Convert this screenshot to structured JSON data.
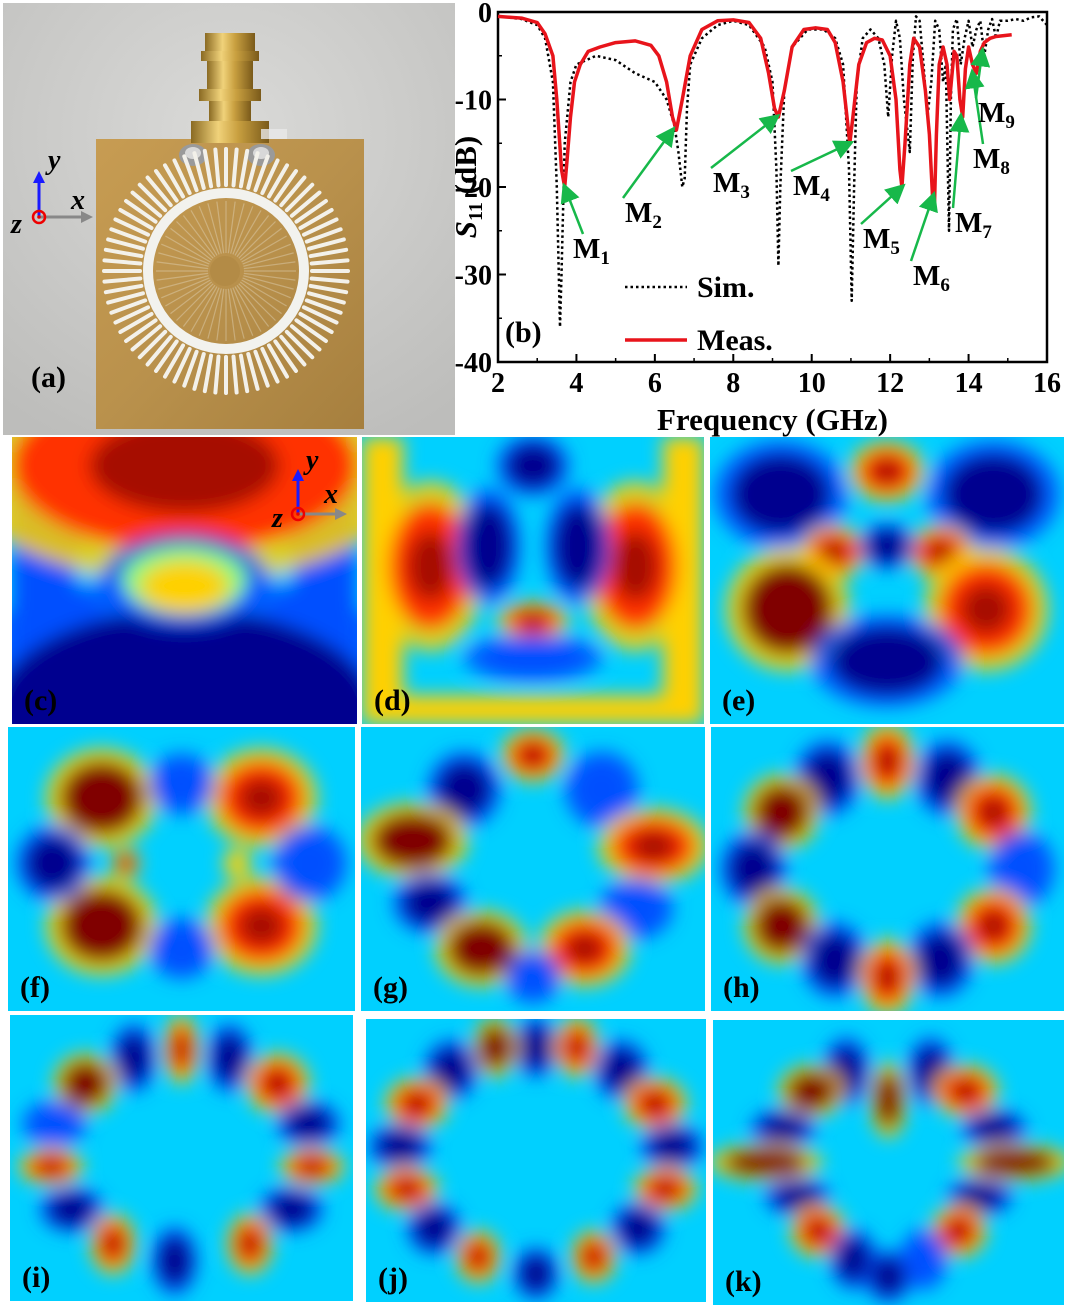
{
  "figure": {
    "panels": [
      {
        "id": "a",
        "label": "(a)",
        "content": "photo"
      },
      {
        "id": "b",
        "label": "(b)",
        "content": "plot"
      },
      {
        "id": "c",
        "label": "(c)",
        "content": "field-map"
      },
      {
        "id": "d",
        "label": "(d)",
        "content": "field-map"
      },
      {
        "id": "e",
        "label": "(e)",
        "content": "field-map"
      },
      {
        "id": "f",
        "label": "(f)",
        "content": "field-map"
      },
      {
        "id": "g",
        "label": "(g)",
        "content": "field-map"
      },
      {
        "id": "h",
        "label": "(h)",
        "content": "field-map"
      },
      {
        "id": "i",
        "label": "(i)",
        "content": "field-map"
      },
      {
        "id": "j",
        "label": "(j)",
        "content": "field-map"
      },
      {
        "id": "k",
        "label": "(k)",
        "content": "field-map"
      }
    ],
    "axes_glyph": {
      "y": "y",
      "x": "x",
      "z": "z"
    },
    "colormap": [
      "#00008f",
      "#0050ff",
      "#00d0ff",
      "#80ff80",
      "#ffd000",
      "#ff3000",
      "#800000"
    ]
  },
  "chart_data": {
    "type": "line",
    "xlabel": "Frequency (GHz)",
    "ylabel_main": "S",
    "ylabel_sub": "11",
    "ylabel_unit": " (dB)",
    "xlim": [
      2,
      16
    ],
    "ylim": [
      -40,
      0
    ],
    "xticks": [
      2,
      4,
      6,
      8,
      10,
      12,
      14,
      16
    ],
    "yticks": [
      0,
      -10,
      -20,
      -30,
      -40
    ],
    "legend": [
      {
        "name": "Sim.",
        "style": "dotted",
        "color": "#000000"
      },
      {
        "name": "Meas.",
        "style": "solid",
        "color": "#e8141b"
      }
    ],
    "series": [
      {
        "name": "Sim.",
        "color": "#000000",
        "x": [
          2.0,
          2.6,
          3.0,
          3.2,
          3.4,
          3.5,
          3.58,
          3.62,
          3.7,
          3.85,
          4.0,
          4.5,
          5.0,
          5.5,
          6.0,
          6.3,
          6.5,
          6.6,
          6.7,
          6.76,
          6.82,
          6.9,
          7.2,
          7.6,
          8.0,
          8.4,
          8.8,
          9.0,
          9.1,
          9.15,
          9.2,
          9.3,
          9.5,
          9.9,
          10.3,
          10.6,
          10.8,
          10.95,
          11.02,
          11.08,
          11.15,
          11.3,
          11.5,
          11.7,
          11.85,
          11.95,
          12.05,
          12.15,
          12.25,
          12.35,
          12.5,
          12.58,
          12.66,
          12.75,
          12.85,
          12.95,
          13.05,
          13.15,
          13.25,
          13.35,
          13.42,
          13.5,
          13.55,
          13.6,
          13.7,
          13.8,
          13.9,
          14.0,
          14.1,
          14.2,
          14.3,
          14.4,
          14.5,
          14.6,
          14.7,
          14.8,
          15.0,
          15.2,
          15.4,
          15.6,
          15.8,
          16.0
        ],
        "y": [
          -0.5,
          -0.8,
          -1.5,
          -3,
          -8,
          -20,
          -36,
          -30,
          -15,
          -8,
          -6,
          -5,
          -5.5,
          -7,
          -8,
          -10,
          -13,
          -16,
          -20,
          -19,
          -11,
          -6,
          -3,
          -1.5,
          -1,
          -1.5,
          -4,
          -8,
          -18,
          -29,
          -20,
          -9,
          -4,
          -2,
          -2,
          -3,
          -6,
          -18,
          -33,
          -20,
          -8,
          -3,
          -2,
          -3,
          -6,
          -12,
          -5,
          -1,
          -3,
          -10,
          -16,
          -5,
          -0.5,
          -1,
          -6,
          -12,
          -8,
          -1,
          -2,
          -8,
          -6,
          -25,
          -10,
          -2,
          -0.8,
          -6,
          -3,
          -1,
          -4,
          -2,
          -1,
          -5,
          -2,
          -0.8,
          -3,
          -1,
          -1,
          -0.8,
          -1,
          -0.6,
          -0.5,
          -1.5
        ]
      },
      {
        "name": "Meas.",
        "color": "#e8141b",
        "x": [
          2.0,
          2.6,
          3.0,
          3.2,
          3.4,
          3.5,
          3.62,
          3.7,
          3.76,
          3.85,
          3.95,
          4.1,
          4.3,
          4.6,
          5.0,
          5.5,
          5.9,
          6.1,
          6.3,
          6.45,
          6.55,
          6.7,
          6.9,
          7.2,
          7.6,
          8.0,
          8.4,
          8.7,
          8.9,
          9.05,
          9.15,
          9.3,
          9.5,
          9.8,
          10.1,
          10.4,
          10.6,
          10.8,
          10.9,
          10.97,
          11.05,
          11.2,
          11.4,
          11.6,
          11.8,
          12.0,
          12.15,
          12.25,
          12.3,
          12.38,
          12.5,
          12.6,
          12.75,
          12.9,
          13.0,
          13.08,
          13.13,
          13.18,
          13.25,
          13.35,
          13.45,
          13.52,
          13.58,
          13.63,
          13.7,
          13.78,
          13.85,
          13.92,
          14.0,
          14.1,
          14.2,
          14.3,
          14.4,
          14.55,
          14.7,
          14.9,
          15.1
        ],
        "y": [
          -0.5,
          -0.7,
          -1.2,
          -2.5,
          -5,
          -10,
          -18,
          -20,
          -17,
          -12,
          -8,
          -6,
          -4.5,
          -4,
          -3.5,
          -3.3,
          -3.8,
          -5,
          -8,
          -12,
          -13.5,
          -10,
          -5,
          -2,
          -1,
          -0.9,
          -1.2,
          -3,
          -7,
          -11,
          -12,
          -9,
          -4,
          -2,
          -1.8,
          -2,
          -3.5,
          -8,
          -12,
          -15,
          -12,
          -6,
          -3.5,
          -3,
          -3.2,
          -5,
          -10,
          -18,
          -20,
          -15,
          -6,
          -3,
          -4,
          -9,
          -14,
          -21,
          -22,
          -14,
          -6,
          -4,
          -6,
          -10,
          -7,
          -4.5,
          -5,
          -10,
          -12,
          -6.5,
          -4,
          -6,
          -7,
          -4.5,
          -3.5,
          -3,
          -2.8,
          -2.7,
          -2.6
        ]
      }
    ],
    "annotations": [
      {
        "main": "M",
        "sub": "1",
        "target": [
          3.7,
          -20
        ]
      },
      {
        "main": "M",
        "sub": "2",
        "target": [
          6.45,
          -13.5
        ]
      },
      {
        "main": "M",
        "sub": "3",
        "target": [
          9.1,
          -12
        ]
      },
      {
        "main": "M",
        "sub": "4",
        "target": [
          10.97,
          -15
        ]
      },
      {
        "main": "M",
        "sub": "5",
        "target": [
          12.3,
          -20
        ]
      },
      {
        "main": "M",
        "sub": "6",
        "target": [
          13.1,
          -21
        ]
      },
      {
        "main": "M",
        "sub": "7",
        "target": [
          13.8,
          -12
        ]
      },
      {
        "main": "M",
        "sub": "8",
        "target": [
          14.1,
          -7
        ]
      },
      {
        "main": "M",
        "sub": "9",
        "target": [
          14.35,
          -4.5
        ]
      }
    ]
  }
}
